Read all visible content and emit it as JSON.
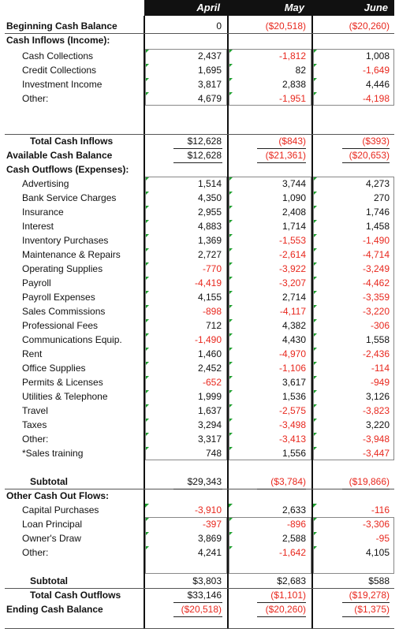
{
  "header": {
    "months": [
      "April",
      "May",
      "June"
    ]
  },
  "rows": [
    {
      "label": "Beginning Cash Balance",
      "type": "h",
      "values": [
        "0",
        "($20,518)",
        "($20,260)"
      ],
      "neg": [
        false,
        true,
        true
      ],
      "tri": [
        false,
        false,
        false
      ]
    },
    {
      "label": "Cash Inflows (Income):",
      "type": "h",
      "values": [
        "",
        "",
        ""
      ],
      "neg": [
        false,
        false,
        false
      ],
      "tri": [
        false,
        false,
        false
      ]
    },
    {
      "label": "Cash Collections",
      "type": "i",
      "values": [
        "2,437",
        "-1,812",
        "1,008"
      ],
      "neg": [
        false,
        true,
        false
      ],
      "tri": [
        true,
        true,
        true
      ]
    },
    {
      "label": "Credit Collections",
      "type": "i",
      "values": [
        "1,695",
        "82",
        "-1,649"
      ],
      "neg": [
        false,
        false,
        true
      ],
      "tri": [
        true,
        true,
        true
      ]
    },
    {
      "label": "Investment Income",
      "type": "i",
      "values": [
        "3,817",
        "2,838",
        "4,446"
      ],
      "neg": [
        false,
        false,
        false
      ],
      "tri": [
        true,
        true,
        true
      ]
    },
    {
      "label": "Other:",
      "type": "i",
      "values": [
        "4,679",
        "-1,951",
        "-4,198"
      ],
      "neg": [
        false,
        true,
        true
      ],
      "tri": [
        true,
        true,
        true
      ]
    },
    {
      "label": "",
      "type": "i",
      "values": [
        "",
        "",
        ""
      ],
      "neg": [
        false,
        false,
        false
      ],
      "tri": [
        false,
        false,
        false
      ]
    },
    {
      "label": "",
      "type": "i",
      "values": [
        "",
        "",
        ""
      ],
      "neg": [
        false,
        false,
        false
      ],
      "tri": [
        false,
        false,
        false
      ]
    },
    {
      "label": "Total Cash Inflows",
      "type": "b",
      "values": [
        "$12,628",
        "($843)",
        "($393)"
      ],
      "neg": [
        false,
        true,
        true
      ],
      "tri": [
        false,
        false,
        false
      ]
    },
    {
      "label": "Available Cash Balance",
      "type": "h",
      "values": [
        "$12,628",
        "($21,361)",
        "($20,653)"
      ],
      "neg": [
        false,
        true,
        true
      ],
      "tri": [
        false,
        false,
        false
      ]
    },
    {
      "label": "Cash Outflows (Expenses):",
      "type": "h",
      "values": [
        "",
        "",
        ""
      ],
      "neg": [
        false,
        false,
        false
      ],
      "tri": [
        false,
        false,
        false
      ]
    },
    {
      "label": "Advertising",
      "type": "i",
      "values": [
        "1,514",
        "3,744",
        "4,273"
      ],
      "neg": [
        false,
        false,
        false
      ],
      "tri": [
        true,
        true,
        true
      ]
    },
    {
      "label": "Bank Service Charges",
      "type": "i",
      "values": [
        "4,350",
        "1,090",
        "270"
      ],
      "neg": [
        false,
        false,
        false
      ],
      "tri": [
        true,
        true,
        true
      ]
    },
    {
      "label": "Insurance",
      "type": "i",
      "values": [
        "2,955",
        "2,408",
        "1,746"
      ],
      "neg": [
        false,
        false,
        false
      ],
      "tri": [
        true,
        true,
        true
      ]
    },
    {
      "label": "Interest",
      "type": "i",
      "values": [
        "4,883",
        "1,714",
        "1,458"
      ],
      "neg": [
        false,
        false,
        false
      ],
      "tri": [
        true,
        true,
        true
      ]
    },
    {
      "label": "Inventory Purchases",
      "type": "i",
      "values": [
        "1,369",
        "-1,553",
        "-1,490"
      ],
      "neg": [
        false,
        true,
        true
      ],
      "tri": [
        true,
        true,
        true
      ]
    },
    {
      "label": "Maintenance & Repairs",
      "type": "i",
      "values": [
        "2,727",
        "-2,614",
        "-4,714"
      ],
      "neg": [
        false,
        true,
        true
      ],
      "tri": [
        true,
        true,
        true
      ]
    },
    {
      "label": "Operating Supplies",
      "type": "i",
      "values": [
        "-770",
        "-3,922",
        "-3,249"
      ],
      "neg": [
        true,
        true,
        true
      ],
      "tri": [
        true,
        true,
        true
      ]
    },
    {
      "label": "Payroll",
      "type": "i",
      "values": [
        "-4,419",
        "-3,207",
        "-4,462"
      ],
      "neg": [
        true,
        true,
        true
      ],
      "tri": [
        true,
        true,
        true
      ]
    },
    {
      "label": "Payroll Expenses",
      "type": "i",
      "values": [
        "4,155",
        "2,714",
        "-3,359"
      ],
      "neg": [
        false,
        false,
        true
      ],
      "tri": [
        true,
        true,
        true
      ]
    },
    {
      "label": "Sales Commissions",
      "type": "i",
      "values": [
        "-898",
        "-4,117",
        "-3,220"
      ],
      "neg": [
        true,
        true,
        true
      ],
      "tri": [
        true,
        true,
        true
      ]
    },
    {
      "label": "Professional Fees",
      "type": "i",
      "values": [
        "712",
        "4,382",
        "-306"
      ],
      "neg": [
        false,
        false,
        true
      ],
      "tri": [
        true,
        true,
        true
      ]
    },
    {
      "label": "Communications Equip.",
      "type": "i",
      "values": [
        "-1,490",
        "4,430",
        "1,558"
      ],
      "neg": [
        true,
        false,
        false
      ],
      "tri": [
        true,
        true,
        true
      ]
    },
    {
      "label": "Rent",
      "type": "i",
      "values": [
        "1,460",
        "-4,970",
        "-2,436"
      ],
      "neg": [
        false,
        true,
        true
      ],
      "tri": [
        true,
        true,
        true
      ]
    },
    {
      "label": "Office Supplies",
      "type": "i",
      "values": [
        "2,452",
        "-1,106",
        "-114"
      ],
      "neg": [
        false,
        true,
        true
      ],
      "tri": [
        true,
        true,
        true
      ]
    },
    {
      "label": "Permits & Licenses",
      "type": "i",
      "values": [
        "-652",
        "3,617",
        "-949"
      ],
      "neg": [
        true,
        false,
        true
      ],
      "tri": [
        true,
        true,
        true
      ]
    },
    {
      "label": "Utilities & Telephone",
      "type": "i",
      "values": [
        "1,999",
        "1,536",
        "3,126"
      ],
      "neg": [
        false,
        false,
        false
      ],
      "tri": [
        true,
        true,
        true
      ]
    },
    {
      "label": "Travel",
      "type": "i",
      "values": [
        "1,637",
        "-2,575",
        "-3,823"
      ],
      "neg": [
        false,
        true,
        true
      ],
      "tri": [
        true,
        true,
        true
      ]
    },
    {
      "label": "Taxes",
      "type": "i",
      "values": [
        "3,294",
        "-3,498",
        "3,220"
      ],
      "neg": [
        false,
        true,
        false
      ],
      "tri": [
        true,
        true,
        true
      ]
    },
    {
      "label": "Other:",
      "type": "i",
      "values": [
        "3,317",
        "-3,413",
        "-3,948"
      ],
      "neg": [
        false,
        true,
        true
      ],
      "tri": [
        true,
        true,
        true
      ]
    },
    {
      "label": "*Sales training",
      "type": "i",
      "values": [
        "748",
        "1,556",
        "-3,447"
      ],
      "neg": [
        false,
        false,
        true
      ],
      "tri": [
        true,
        true,
        true
      ]
    },
    {
      "label": "",
      "type": "i",
      "values": [
        "",
        "",
        ""
      ],
      "neg": [
        false,
        false,
        false
      ],
      "tri": [
        false,
        false,
        false
      ]
    },
    {
      "label": "Subtotal",
      "type": "b",
      "values": [
        "$29,343",
        "($3,784)",
        "($19,866)"
      ],
      "neg": [
        false,
        true,
        true
      ],
      "tri": [
        false,
        false,
        false
      ]
    },
    {
      "label": "Other Cash Out Flows:",
      "type": "h",
      "values": [
        "",
        "",
        ""
      ],
      "neg": [
        false,
        false,
        false
      ],
      "tri": [
        false,
        false,
        false
      ]
    },
    {
      "label": "Capital Purchases",
      "type": "i",
      "values": [
        "-3,910",
        "2,633",
        "-116"
      ],
      "neg": [
        true,
        false,
        true
      ],
      "tri": [
        true,
        true,
        true
      ]
    },
    {
      "label": "Loan Principal",
      "type": "i",
      "values": [
        "-397",
        "-896",
        "-3,306"
      ],
      "neg": [
        true,
        true,
        true
      ],
      "tri": [
        true,
        true,
        true
      ]
    },
    {
      "label": "Owner's Draw",
      "type": "i",
      "values": [
        "3,869",
        "2,588",
        "-95"
      ],
      "neg": [
        false,
        false,
        true
      ],
      "tri": [
        true,
        true,
        true
      ]
    },
    {
      "label": "Other:",
      "type": "i",
      "values": [
        "4,241",
        "-1,642",
        "4,105"
      ],
      "neg": [
        false,
        true,
        false
      ],
      "tri": [
        true,
        true,
        true
      ]
    },
    {
      "label": "",
      "type": "i",
      "values": [
        "",
        "",
        ""
      ],
      "neg": [
        false,
        false,
        false
      ],
      "tri": [
        false,
        false,
        false
      ]
    },
    {
      "label": "Subtotal",
      "type": "b",
      "values": [
        "$3,803",
        "$2,683",
        "$588"
      ],
      "neg": [
        false,
        false,
        false
      ],
      "tri": [
        false,
        false,
        false
      ]
    },
    {
      "label": "Total Cash Outflows",
      "type": "b",
      "values": [
        "$33,146",
        "($1,101)",
        "($19,278)"
      ],
      "neg": [
        false,
        true,
        true
      ],
      "tri": [
        false,
        false,
        false
      ]
    },
    {
      "label": "Ending Cash Balance",
      "type": "h",
      "values": [
        "($20,518)",
        "($20,260)",
        "($1,375)"
      ],
      "neg": [
        true,
        true,
        true
      ],
      "tri": [
        false,
        false,
        false
      ]
    }
  ],
  "colors": {
    "negative": "#e8281e",
    "indicator": "#1e9e2e",
    "header_bg": "#111111"
  }
}
